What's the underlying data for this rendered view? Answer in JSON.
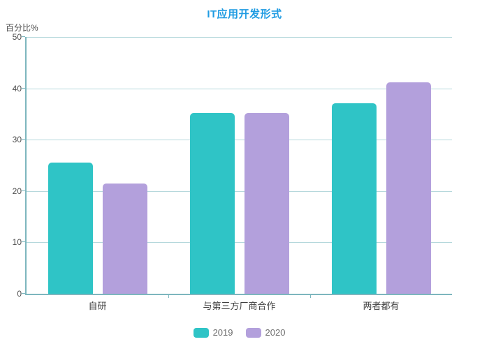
{
  "title": "IT应用开发形式",
  "y_axis_unit": "百分比%",
  "colors": {
    "title": "#1e9be2",
    "axis_line": "#7db6be",
    "gridline": "#b5d8dc",
    "tick_text": "#4d4d4d",
    "category_text": "#3f3f3f",
    "legend_text": "#6e6e6e",
    "series_2019": "#2fc4c6",
    "series_2020": "#b3a0dc",
    "background": "#ffffff"
  },
  "chart_data": {
    "type": "bar",
    "title": "IT应用开发形式",
    "ylabel": "百分比%",
    "categories": [
      "自研",
      "与第三方厂商合作",
      "两者都有"
    ],
    "series": [
      {
        "name": "2019",
        "color": "#2fc4c6",
        "values": [
          25.5,
          35.2,
          37.1
        ]
      },
      {
        "name": "2020",
        "color": "#b3a0dc",
        "values": [
          21.5,
          35.2,
          41.2
        ]
      }
    ],
    "ylim": [
      0,
      50
    ],
    "ytick_interval": 10,
    "ytick_labels": [
      "0",
      "10",
      "20",
      "30",
      "40",
      "50"
    ],
    "grid": true,
    "legend_position": "bottom",
    "legend_entries": [
      "2019",
      "2020"
    ]
  }
}
